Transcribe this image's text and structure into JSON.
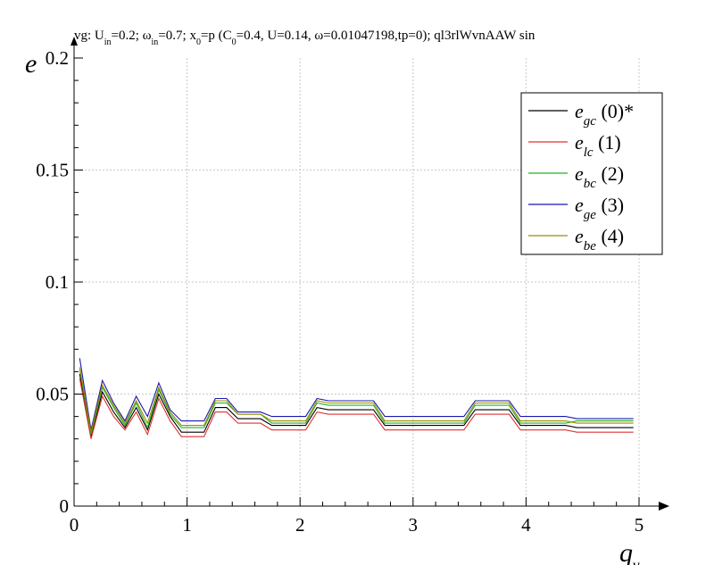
{
  "chart_data": {
    "type": "line",
    "title_parts": [
      {
        "t": "vg: U"
      },
      {
        "t": "in",
        "s": "sub"
      },
      {
        "t": "=0.2; ω"
      },
      {
        "t": "in",
        "s": "sub"
      },
      {
        "t": "=0.7; x"
      },
      {
        "t": "0",
        "s": "sub"
      },
      {
        "t": "=p (C"
      },
      {
        "t": "0",
        "s": "sub"
      },
      {
        "t": "=0.4, U=0.14, ω=0.01047198,tp=0); ql3rlWvnAAW sin"
      }
    ],
    "xlabel": {
      "sym": "q",
      "sub": "γ"
    },
    "ylabel": {
      "sym": "e",
      "sub": ""
    },
    "xlim": [
      0,
      5
    ],
    "ylim": [
      0,
      0.2
    ],
    "x_ticks": [
      0,
      1,
      2,
      3,
      4,
      5
    ],
    "x_tick_labels": [
      "0",
      "1",
      "2",
      "3",
      "4",
      "5"
    ],
    "y_ticks": [
      0,
      0.05,
      0.1,
      0.15,
      0.2
    ],
    "y_tick_labels": [
      "0",
      "0.05",
      "0.1",
      "0.15",
      "0.2"
    ],
    "grid": true,
    "legend_position": "top-right",
    "x": [
      0.05,
      0.15,
      0.25,
      0.35,
      0.45,
      0.55,
      0.65,
      0.75,
      0.85,
      0.95,
      1.05,
      1.15,
      1.25,
      1.35,
      1.45,
      1.55,
      1.65,
      1.75,
      1.85,
      1.95,
      2.05,
      2.15,
      2.25,
      2.35,
      2.45,
      2.55,
      2.65,
      2.75,
      2.85,
      2.95,
      3.05,
      3.15,
      3.25,
      3.35,
      3.45,
      3.55,
      3.65,
      3.75,
      3.85,
      3.95,
      4.05,
      4.15,
      4.25,
      4.35,
      4.45,
      4.55,
      4.65,
      4.75,
      4.85,
      4.95
    ],
    "series": [
      {
        "name": "(0)*",
        "sym": "e",
        "sub": "gc",
        "color": "#000000",
        "values": [
          0.059,
          0.031,
          0.051,
          0.042,
          0.035,
          0.044,
          0.034,
          0.05,
          0.04,
          0.033,
          0.033,
          0.033,
          0.044,
          0.044,
          0.039,
          0.039,
          0.039,
          0.036,
          0.036,
          0.036,
          0.036,
          0.044,
          0.043,
          0.043,
          0.043,
          0.043,
          0.043,
          0.036,
          0.036,
          0.036,
          0.036,
          0.036,
          0.036,
          0.036,
          0.036,
          0.043,
          0.043,
          0.043,
          0.043,
          0.036,
          0.036,
          0.036,
          0.036,
          0.036,
          0.035,
          0.035,
          0.035,
          0.035,
          0.035,
          0.035
        ]
      },
      {
        "name": "(1)",
        "sym": "e",
        "sub": "lc",
        "color": "#e03030",
        "values": [
          0.057,
          0.03,
          0.049,
          0.04,
          0.034,
          0.042,
          0.032,
          0.048,
          0.038,
          0.031,
          0.031,
          0.031,
          0.042,
          0.042,
          0.037,
          0.037,
          0.037,
          0.034,
          0.034,
          0.034,
          0.034,
          0.042,
          0.041,
          0.041,
          0.041,
          0.041,
          0.041,
          0.034,
          0.034,
          0.034,
          0.034,
          0.034,
          0.034,
          0.034,
          0.034,
          0.041,
          0.041,
          0.041,
          0.041,
          0.034,
          0.034,
          0.034,
          0.034,
          0.034,
          0.033,
          0.033,
          0.033,
          0.033,
          0.033,
          0.033
        ]
      },
      {
        "name": "(2)",
        "sym": "e",
        "sub": "bc",
        "color": "#20b020",
        "values": [
          0.061,
          0.032,
          0.053,
          0.044,
          0.036,
          0.046,
          0.035,
          0.052,
          0.041,
          0.035,
          0.035,
          0.035,
          0.046,
          0.046,
          0.041,
          0.041,
          0.041,
          0.037,
          0.037,
          0.037,
          0.037,
          0.046,
          0.045,
          0.045,
          0.045,
          0.045,
          0.045,
          0.037,
          0.037,
          0.037,
          0.037,
          0.037,
          0.037,
          0.037,
          0.037,
          0.045,
          0.045,
          0.045,
          0.045,
          0.037,
          0.037,
          0.037,
          0.037,
          0.037,
          0.038,
          0.038,
          0.038,
          0.038,
          0.038,
          0.038
        ]
      },
      {
        "name": "(3)",
        "sym": "e",
        "sub": "ge",
        "color": "#1818b0",
        "values": [
          0.066,
          0.034,
          0.056,
          0.046,
          0.038,
          0.049,
          0.04,
          0.055,
          0.043,
          0.038,
          0.038,
          0.038,
          0.048,
          0.048,
          0.042,
          0.042,
          0.042,
          0.04,
          0.04,
          0.04,
          0.04,
          0.048,
          0.047,
          0.047,
          0.047,
          0.047,
          0.047,
          0.04,
          0.04,
          0.04,
          0.04,
          0.04,
          0.04,
          0.04,
          0.04,
          0.047,
          0.047,
          0.047,
          0.047,
          0.04,
          0.04,
          0.04,
          0.04,
          0.04,
          0.039,
          0.039,
          0.039,
          0.039,
          0.039,
          0.039
        ]
      },
      {
        "name": "(4)",
        "sym": "e",
        "sub": "be",
        "color": "#a08a00",
        "values": [
          0.062,
          0.033,
          0.054,
          0.045,
          0.037,
          0.047,
          0.037,
          0.053,
          0.042,
          0.036,
          0.036,
          0.036,
          0.047,
          0.047,
          0.041,
          0.041,
          0.041,
          0.038,
          0.038,
          0.038,
          0.038,
          0.047,
          0.046,
          0.046,
          0.046,
          0.046,
          0.046,
          0.038,
          0.038,
          0.038,
          0.038,
          0.038,
          0.038,
          0.038,
          0.038,
          0.046,
          0.046,
          0.046,
          0.046,
          0.038,
          0.038,
          0.038,
          0.038,
          0.038,
          0.037,
          0.037,
          0.037,
          0.037,
          0.037,
          0.037
        ]
      }
    ]
  }
}
